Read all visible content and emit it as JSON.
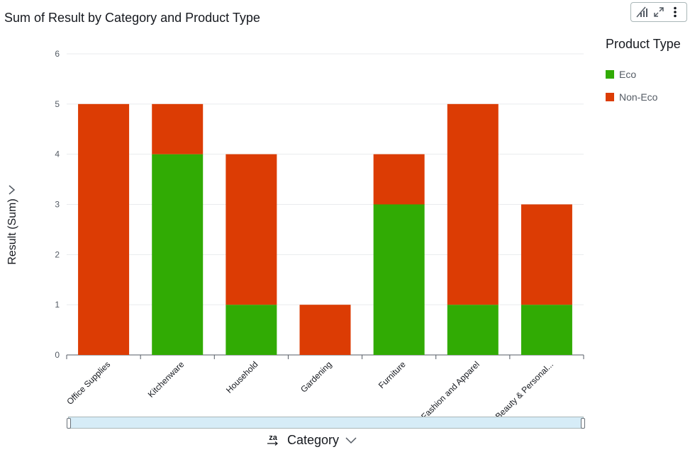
{
  "title": "Sum of Result by Category and Product Type",
  "toolbar": {
    "icons": [
      "bar-chart-icon",
      "expand-icon",
      "more-vertical-icon"
    ]
  },
  "legend": {
    "title": "Product Type",
    "items": [
      {
        "label": "Eco",
        "color": "#31ab04"
      },
      {
        "label": "Non-Eco",
        "color": "#dc3c04"
      }
    ]
  },
  "y_axis": {
    "label": "Result (Sum)"
  },
  "x_axis": {
    "label": "Category",
    "sort_icon_text": "za"
  },
  "chart_data": {
    "type": "bar",
    "stacked": true,
    "title": "Sum of Result by Category and Product Type",
    "xlabel": "Category",
    "ylabel": "Result (Sum)",
    "ylim": [
      0,
      6
    ],
    "yticks": [
      0,
      1,
      2,
      3,
      4,
      5,
      6
    ],
    "grid": true,
    "legend_position": "top-right",
    "categories": [
      "Office Supplies",
      "Kitchenware",
      "Household",
      "Gardening",
      "Furniture",
      "Fashion and Apparel",
      "Beauty & Personal..."
    ],
    "series": [
      {
        "name": "Eco",
        "color": "#31ab04",
        "values": [
          0,
          4,
          1,
          0,
          3,
          1,
          1
        ]
      },
      {
        "name": "Non-Eco",
        "color": "#dc3c04",
        "values": [
          5,
          1,
          3,
          1,
          1,
          4,
          2
        ]
      }
    ]
  }
}
